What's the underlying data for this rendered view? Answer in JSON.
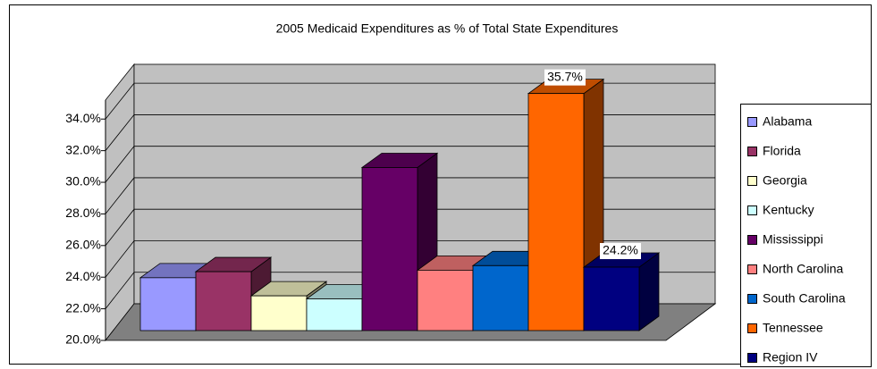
{
  "chart_data": {
    "type": "bar3d",
    "title": "2005 Medicaid Expenditures as % of Total State Expenditures",
    "categories": [
      "Alabama",
      "Florida",
      "Georgia",
      "Kentucky",
      "Mississippi",
      "North Carolina",
      "South Carolina",
      "Tennessee",
      "Region IV"
    ],
    "values": [
      23.5,
      23.9,
      22.3,
      22.1,
      30.8,
      24.0,
      24.3,
      35.7,
      24.2
    ],
    "value_labels": [
      null,
      null,
      null,
      null,
      null,
      null,
      null,
      "35.7%",
      "24.2%"
    ],
    "colors": [
      "#9999ff",
      "#993366",
      "#ffffcc",
      "#ccffff",
      "#660066",
      "#ff8080",
      "#0066cc",
      "#ff6600",
      "#000080"
    ],
    "ylim": [
      20,
      35.2
    ],
    "yticks": [
      {
        "value": 20,
        "label": "20.0%"
      },
      {
        "value": 22,
        "label": "22.0%"
      },
      {
        "value": 24,
        "label": "24.0%"
      },
      {
        "value": 26,
        "label": "26.0%"
      },
      {
        "value": 28,
        "label": "28.0%"
      },
      {
        "value": 30,
        "label": "30.0%"
      },
      {
        "value": 32,
        "label": "32.0%"
      },
      {
        "value": 34,
        "label": "34.0%"
      }
    ],
    "grid": true,
    "legend": "right"
  }
}
